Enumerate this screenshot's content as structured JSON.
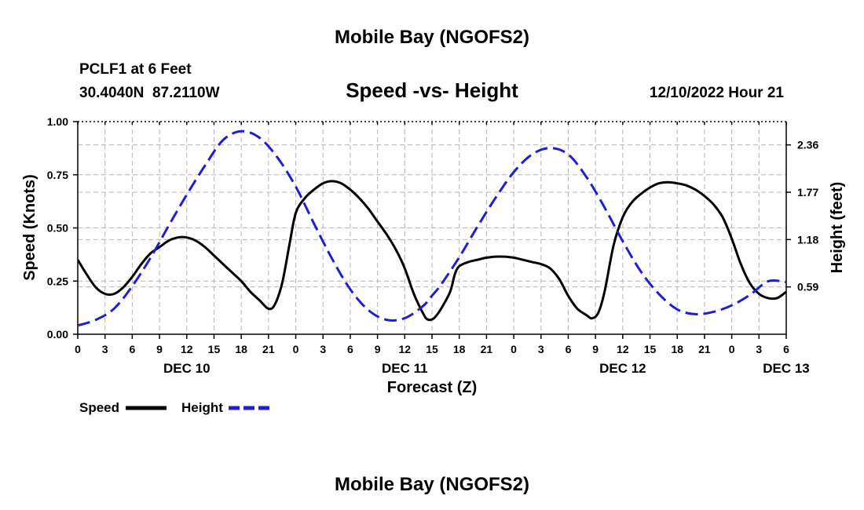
{
  "chart_data": {
    "type": "line",
    "title": "Mobile Bay (NGOFS2)",
    "footer_title": "Mobile Bay (NGOFS2)",
    "station": "PCLF1 at 6 Feet",
    "coordinates": "30.4040N  87.2110W",
    "subtitle": "Speed -vs- Height",
    "date_label": "12/10/2022 Hour 21",
    "xlabel": "Forecast (Z)",
    "ylabel_left": "Speed (Knots)",
    "ylabel_right": "Height (feet)",
    "x_range_hours": [
      0,
      78
    ],
    "x_tick_labels": [
      "0",
      "3",
      "6",
      "9",
      "12",
      "15",
      "18",
      "21",
      "0",
      "3",
      "6",
      "9",
      "12",
      "15",
      "18",
      "21",
      "0",
      "3",
      "6",
      "9",
      "12",
      "15",
      "18",
      "21",
      "0",
      "3",
      "6"
    ],
    "day_labels": [
      {
        "label": "DEC 10",
        "hour": 12
      },
      {
        "label": "DEC 11",
        "hour": 36
      },
      {
        "label": "DEC 12",
        "hour": 60
      },
      {
        "label": "DEC 13",
        "hour": 78
      }
    ],
    "ylim_left": [
      0,
      1
    ],
    "y_ticks_left": [
      "0.00",
      "0.25",
      "0.50",
      "0.75",
      "1.00"
    ],
    "ylim_right": [
      0,
      2.65
    ],
    "y_ticks_right": [
      "0.59",
      "1.18",
      "1.77",
      "2.36"
    ],
    "legend": [
      {
        "name": "Speed",
        "color": "#000000",
        "style": "solid"
      },
      {
        "name": "Height",
        "color": "#1f1fcf",
        "style": "dashed"
      }
    ],
    "series": [
      {
        "name": "Speed",
        "axis": "left",
        "color": "#000000",
        "x": [
          0,
          1,
          2,
          3,
          4,
          5,
          6,
          7,
          8,
          9,
          10,
          11,
          12,
          13,
          14,
          15,
          16,
          17,
          18,
          19,
          20,
          21,
          21.7,
          22.5,
          23.3,
          24,
          25,
          26,
          27,
          28,
          29,
          30,
          31,
          32,
          33,
          34,
          35,
          36,
          37,
          38,
          38.5,
          39.2,
          40,
          41,
          41.5,
          42,
          43,
          44,
          45,
          46,
          47,
          48,
          49,
          50,
          51,
          52,
          53,
          54,
          55,
          56,
          56.6,
          57.3,
          58,
          59,
          60,
          61,
          62,
          63,
          64,
          65,
          66,
          67,
          68,
          69,
          70,
          71,
          72,
          73,
          74,
          75,
          76,
          77,
          78
        ],
        "values": [
          0.35,
          0.28,
          0.22,
          0.19,
          0.19,
          0.22,
          0.27,
          0.33,
          0.38,
          0.41,
          0.44,
          0.455,
          0.455,
          0.44,
          0.41,
          0.37,
          0.33,
          0.29,
          0.25,
          0.2,
          0.16,
          0.12,
          0.14,
          0.24,
          0.42,
          0.57,
          0.64,
          0.68,
          0.71,
          0.72,
          0.71,
          0.68,
          0.64,
          0.59,
          0.53,
          0.47,
          0.4,
          0.31,
          0.19,
          0.1,
          0.07,
          0.075,
          0.12,
          0.2,
          0.28,
          0.32,
          0.34,
          0.35,
          0.36,
          0.365,
          0.365,
          0.36,
          0.35,
          0.34,
          0.33,
          0.31,
          0.26,
          0.18,
          0.12,
          0.09,
          0.075,
          0.1,
          0.2,
          0.42,
          0.55,
          0.62,
          0.66,
          0.69,
          0.71,
          0.715,
          0.71,
          0.7,
          0.68,
          0.65,
          0.61,
          0.55,
          0.45,
          0.33,
          0.24,
          0.19,
          0.17,
          0.17,
          0.2
        ]
      },
      {
        "name": "Height",
        "axis": "right",
        "color": "#1f1fcf",
        "x": [
          0,
          2,
          4,
          6,
          8,
          10,
          12,
          14,
          16,
          18,
          20,
          22,
          24,
          26,
          28,
          30,
          32,
          34,
          36,
          38,
          39,
          40,
          42,
          44,
          46,
          48,
          50,
          52,
          54,
          56,
          58,
          60,
          62,
          64,
          66,
          68,
          70,
          72,
          74,
          76,
          78
        ],
        "values": [
          0.11,
          0.18,
          0.32,
          0.6,
          0.95,
          1.35,
          1.74,
          2.1,
          2.42,
          2.53,
          2.45,
          2.2,
          1.84,
          1.38,
          0.94,
          0.56,
          0.3,
          0.18,
          0.2,
          0.35,
          0.48,
          0.62,
          0.96,
          1.34,
          1.7,
          2.02,
          2.24,
          2.32,
          2.24,
          1.96,
          1.58,
          1.16,
          0.78,
          0.5,
          0.31,
          0.25,
          0.28,
          0.36,
          0.49,
          0.66,
          0.65
        ]
      }
    ]
  }
}
